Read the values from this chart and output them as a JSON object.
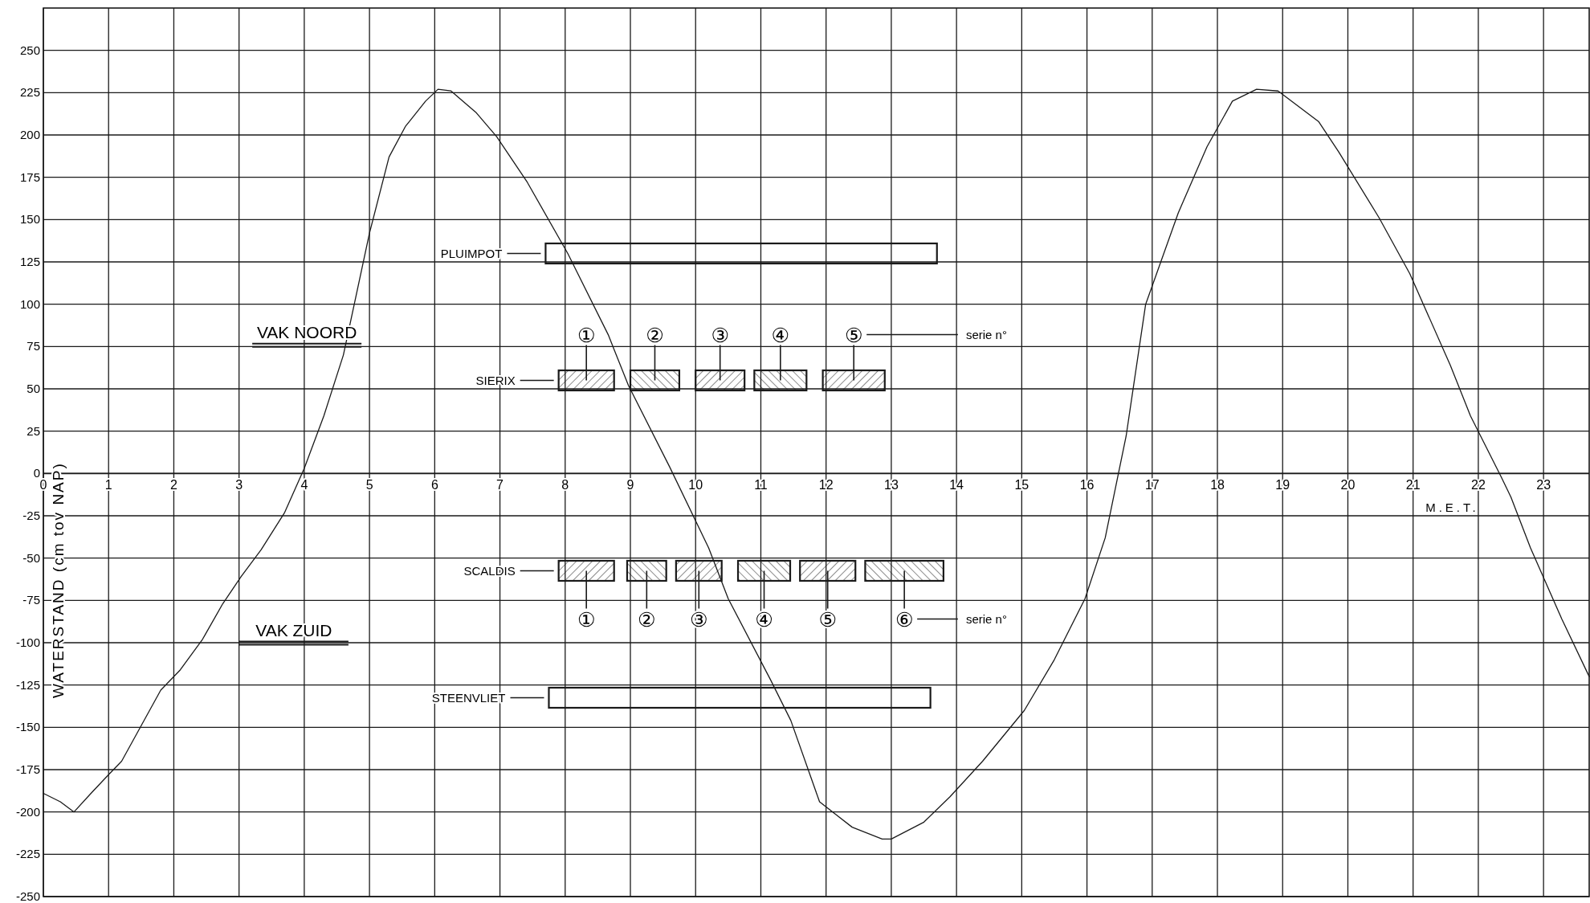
{
  "chart_data": [
    {
      "type": "line",
      "xlabel": "M.E.T.",
      "ylabel": "WATERSTAND (cm tov NAP)",
      "xlim": [
        0,
        23.7
      ],
      "ylim": [
        -250,
        275
      ],
      "xticks": [
        0,
        1,
        2,
        3,
        4,
        5,
        6,
        7,
        8,
        9,
        10,
        11,
        12,
        13,
        14,
        15,
        16,
        17,
        18,
        19,
        20,
        21,
        22,
        23
      ],
      "yticks": [
        -250,
        -225,
        -200,
        -175,
        -150,
        -125,
        -100,
        -75,
        -50,
        -25,
        0,
        25,
        50,
        75,
        100,
        125,
        150,
        175,
        200,
        225,
        250
      ],
      "grid": true,
      "marker": "none",
      "line_style": "solid",
      "x": [
        0,
        0.26,
        0.47,
        0.73,
        1,
        1.2,
        1.5,
        1.8,
        2.1,
        2.44,
        2.75,
        3.03,
        3.34,
        3.7,
        4,
        4.3,
        4.6,
        5,
        5.3,
        5.55,
        5.86,
        6.05,
        6.25,
        6.64,
        6.95,
        7.42,
        8.04,
        8.66,
        8.97,
        9.6,
        10.2,
        10.5,
        11.15,
        11.46,
        11.9,
        12.4,
        12.86,
        13,
        13.5,
        13.9,
        14.4,
        15.04,
        15.5,
        15.97,
        16.28,
        16.6,
        16.9,
        17.4,
        17.84,
        18.23,
        18.6,
        18.93,
        19.55,
        19.86,
        20.48,
        20.95,
        21.57,
        21.88,
        22.35,
        22.5,
        22.8,
        23.28,
        23.7
      ],
      "series": [
        {
          "color": "#1a1a1a",
          "values": [
            -189,
            -194,
            -200,
            -189,
            -178,
            -170,
            -149,
            -128,
            -116,
            -98,
            -77,
            -61,
            -45,
            -23,
            3,
            34,
            70,
            142,
            187,
            205,
            220,
            227,
            226,
            213,
            199,
            172,
            130,
            82,
            52,
            4,
            -44,
            -74,
            -122,
            -146,
            -194,
            -209,
            -216,
            -216,
            -206,
            -191,
            -170,
            -140,
            -110,
            -74,
            -38,
            22,
            100,
            154,
            193,
            220,
            227,
            226,
            208,
            190,
            151,
            118,
            64,
            34,
            -2,
            -14,
            -44,
            -86,
            -120
          ]
        }
      ],
      "annotations": [
        "VAK NOORD",
        "VAK ZUID"
      ]
    },
    {
      "type": "bar",
      "orientation": "horizontal",
      "xlim": [
        0,
        23.7
      ],
      "categories": [
        "PLUIMPOT",
        null,
        "SIERIX",
        null,
        null,
        "SCALDIS",
        null,
        "STEENVLIET"
      ],
      "series": [
        {
          "color": "#1a1a1a",
          "base": [
            7.7,
            null,
            7.9,
            null,
            null,
            7.9,
            null,
            7.75
          ],
          "values": [
            6.0,
            null,
            0.85,
            null,
            null,
            0.85,
            null,
            5.85
          ]
        },
        {
          "color": "#1a1a1a",
          "base": [
            null,
            null,
            9.0,
            null,
            null,
            8.95,
            null,
            null
          ],
          "values": [
            null,
            null,
            0.75,
            null,
            null,
            0.6,
            null,
            null
          ]
        },
        {
          "color": "#1a1a1a",
          "base": [
            null,
            null,
            10.0,
            null,
            null,
            9.7,
            null,
            null
          ],
          "values": [
            null,
            null,
            0.75,
            null,
            null,
            0.7,
            null,
            null
          ]
        },
        {
          "color": "#1a1a1a",
          "base": [
            null,
            null,
            10.9,
            null,
            null,
            10.65,
            null,
            null
          ],
          "values": [
            null,
            null,
            0.8,
            null,
            null,
            0.8,
            null,
            null
          ]
        },
        {
          "color": "#1a1a1a",
          "base": [
            null,
            null,
            11.95,
            null,
            null,
            11.6,
            null,
            null
          ],
          "values": [
            null,
            null,
            0.95,
            null,
            null,
            0.85,
            null,
            null
          ]
        },
        {
          "color": "#1a1a1a",
          "base": [
            null,
            null,
            null,
            null,
            null,
            12.6,
            null,
            null
          ],
          "values": [
            null,
            null,
            null,
            null,
            null,
            1.2,
            null,
            null
          ]
        }
      ],
      "annotations": [
        "①",
        "②",
        "③",
        "④",
        "⑤",
        "serie n°",
        "①",
        "②",
        "③",
        "④",
        "⑤",
        "⑥",
        "serie n°"
      ]
    }
  ]
}
